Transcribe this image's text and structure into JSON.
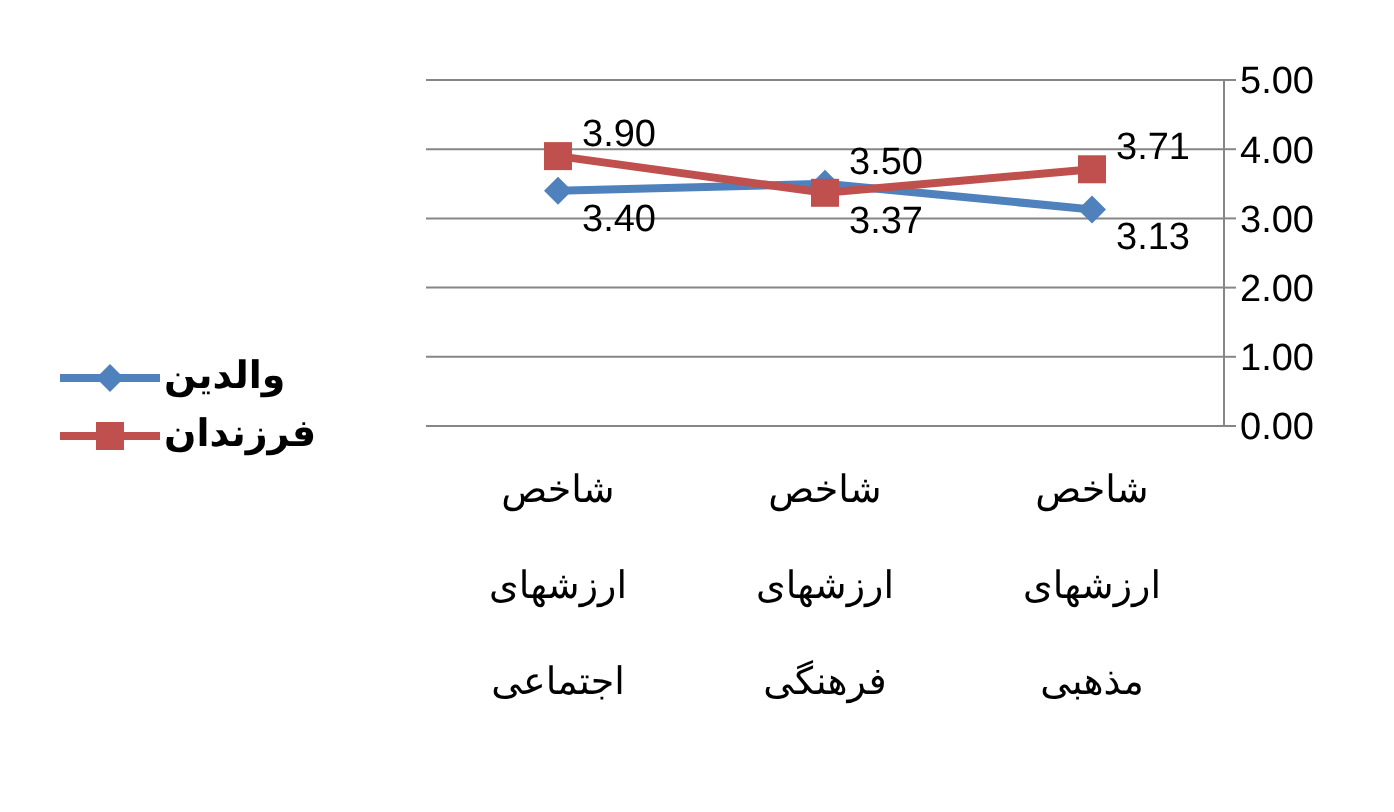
{
  "chart_data": {
    "type": "line",
    "categories": [
      "شاخص ارزشهای اجتماعی",
      "شاخص ارزشهای فرهنگی",
      "شاخص ارزشهای مذهبی"
    ],
    "series": [
      {
        "name": "والدین",
        "color": "#4f81bd",
        "marker": "diamond",
        "values": [
          3.4,
          3.5,
          3.13
        ],
        "value_labels": [
          "3.40",
          "3.50",
          "3.13"
        ]
      },
      {
        "name": "فرزندان",
        "color": "#c0504d",
        "marker": "square",
        "values": [
          3.9,
          3.37,
          3.71
        ],
        "value_labels": [
          "3.90",
          "3.37",
          "3.71"
        ]
      }
    ],
    "ylim": [
      0,
      5
    ],
    "yticks": [
      {
        "value": 0,
        "label": "0.00"
      },
      {
        "value": 1,
        "label": "1.00"
      },
      {
        "value": 2,
        "label": "2.00"
      },
      {
        "value": 3,
        "label": "3.00"
      },
      {
        "value": 4,
        "label": "4.00"
      },
      {
        "value": 5,
        "label": "5.00"
      }
    ],
    "grid": "y",
    "legend": "left"
  }
}
